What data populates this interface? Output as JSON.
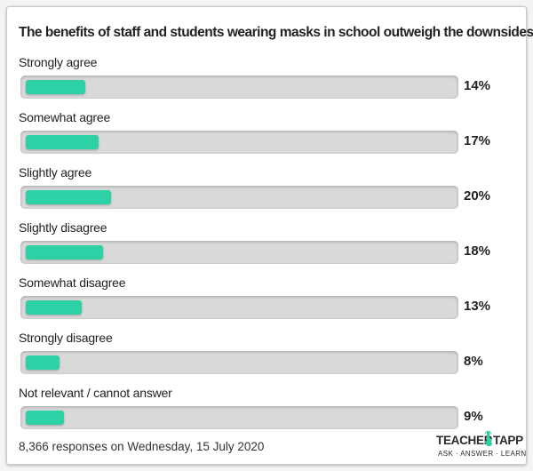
{
  "chart_data": {
    "type": "bar",
    "orientation": "horizontal",
    "title": "The benefits of staff and students wearing masks in school outweigh the downsides",
    "categories": [
      "Strongly agree",
      "Somewhat agree",
      "Slightly agree",
      "Slightly disagree",
      "Somewhat disagree",
      "Strongly disagree",
      "Not relevant / cannot answer"
    ],
    "values": [
      14,
      17,
      20,
      18,
      13,
      8,
      9
    ],
    "value_labels": [
      "14%",
      "17%",
      "20%",
      "18%",
      "13%",
      "8%",
      "9%"
    ],
    "xlim": [
      0,
      100
    ],
    "grid": false,
    "bar_color": "#2ed0a6",
    "track_color": "#d9d9d9"
  },
  "footer": {
    "responses": "8,366 responses on Wednesday, 15 July 2020"
  },
  "logo": {
    "word_left": "TEACHER",
    "word_right": "TAPP",
    "tagline": "ASK · ANSWER · LEARN",
    "icon": "tap-finger-icon",
    "accent": "#2ed0a6"
  }
}
